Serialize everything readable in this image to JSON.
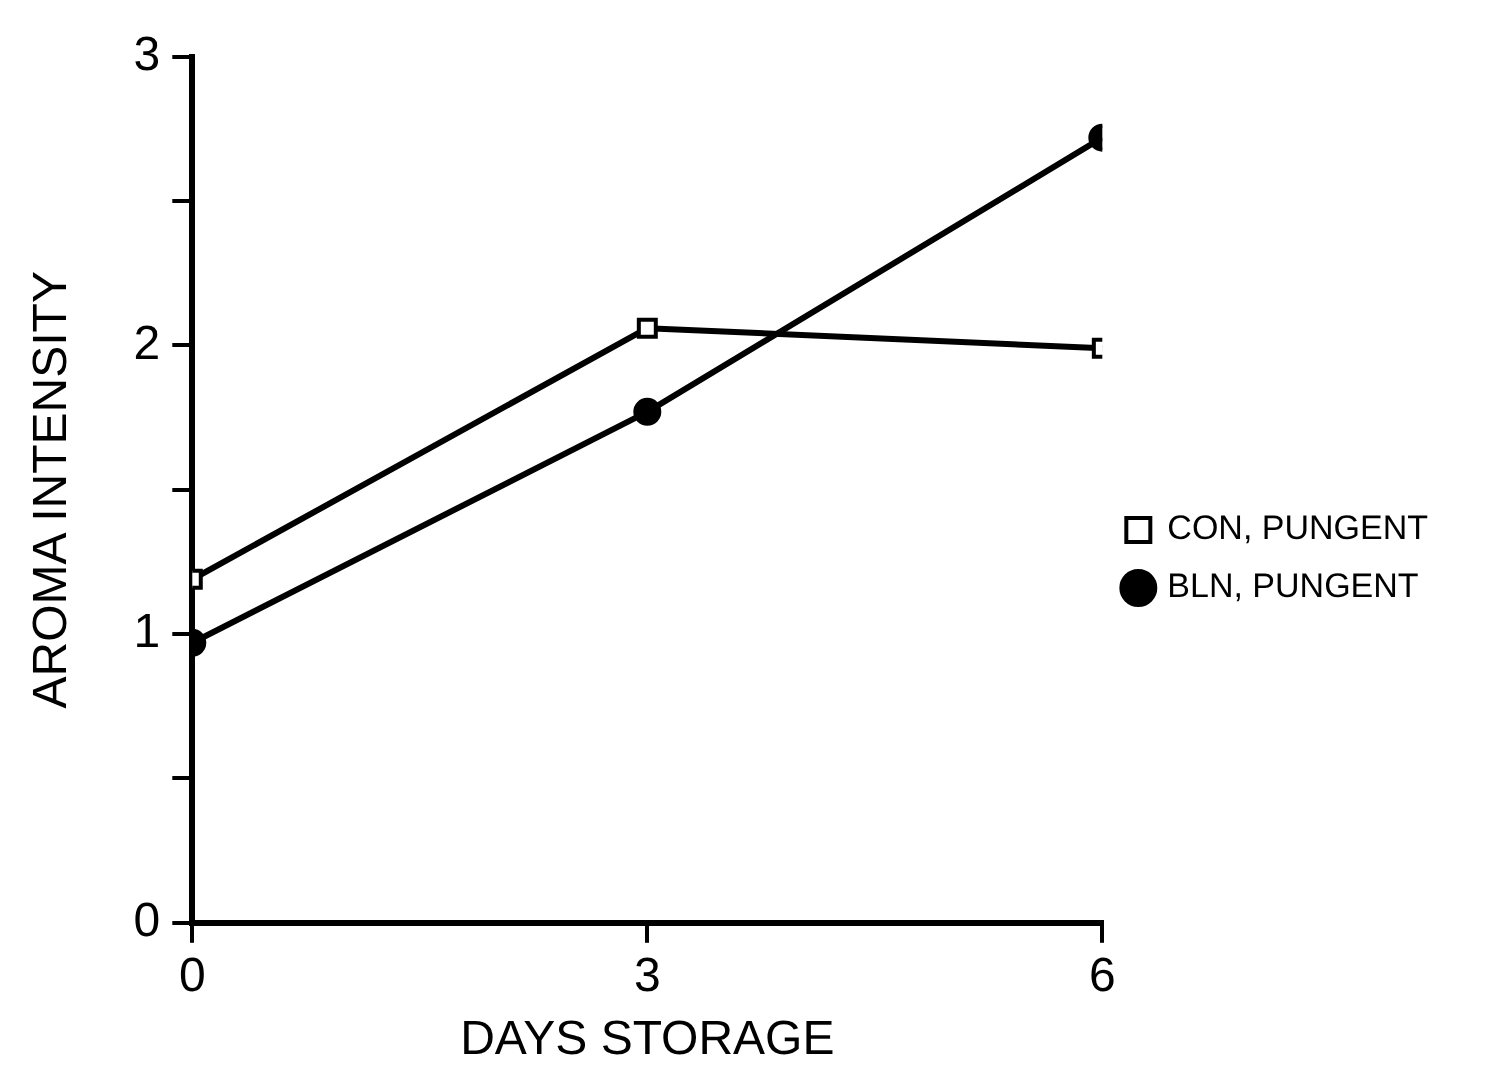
{
  "chart_data": {
    "type": "line",
    "xlabel": "DAYS STORAGE",
    "ylabel": "AROMA INTENSITY",
    "x": [
      0,
      3,
      6
    ],
    "series": [
      {
        "name": "CON, PUNGENT",
        "color": "#000000",
        "marker": "square",
        "values": [
          1.19,
          2.06,
          1.99
        ]
      },
      {
        "name": "BLN, PUNGENT",
        "color": "#000000",
        "marker": "circle",
        "values": [
          0.97,
          1.77,
          2.72
        ]
      }
    ],
    "xlim": [
      0,
      6
    ],
    "xticks": [
      0,
      3,
      6
    ],
    "ylim": [
      0,
      3
    ],
    "yticks": [
      0,
      {
        "value": 0.5,
        "label": null
      },
      1,
      {
        "value": 1.5,
        "label": null
      },
      2,
      {
        "value": 2.5,
        "label": null
      },
      3
    ],
    "grid": false,
    "legend": "right",
    "line_style": "solid"
  }
}
